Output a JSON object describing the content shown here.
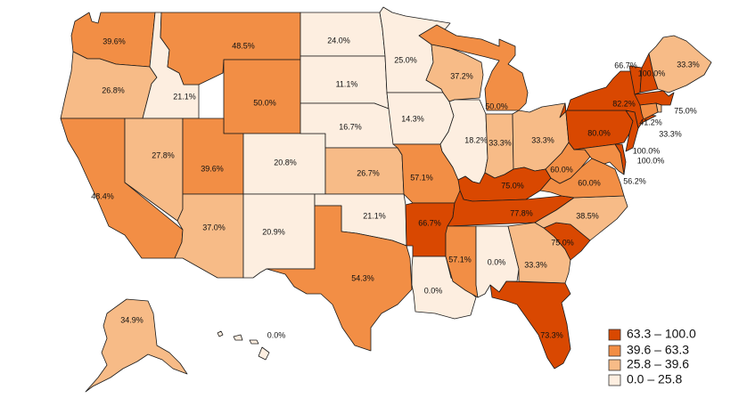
{
  "colors": {
    "c1": "#d94801",
    "c2": "#f28e45",
    "c3": "#f7bb87",
    "c4": "#fdeee0"
  },
  "legend": [
    {
      "id": "leg1",
      "label": "63.3 – 100.0",
      "color": "#d94801"
    },
    {
      "id": "leg2",
      "label": "39.6 – 63.3",
      "color": "#f28e45"
    },
    {
      "id": "leg3",
      "label": "25.8 – 39.6",
      "color": "#f7bb87"
    },
    {
      "id": "leg4",
      "label": "0.0 – 25.8",
      "color": "#fdeee0"
    }
  ],
  "states": [
    {
      "id": "WA",
      "value": "39.6%"
    },
    {
      "id": "OR",
      "value": "26.8%"
    },
    {
      "id": "CA",
      "value": "48.4%"
    },
    {
      "id": "ID",
      "value": "21.1%"
    },
    {
      "id": "NV",
      "value": "27.8%"
    },
    {
      "id": "MT",
      "value": "48.5%"
    },
    {
      "id": "WY",
      "value": "50.0%"
    },
    {
      "id": "UT",
      "value": "39.6%"
    },
    {
      "id": "AZ",
      "value": "37.0%"
    },
    {
      "id": "CO",
      "value": "20.8%"
    },
    {
      "id": "NM",
      "value": "20.9%"
    },
    {
      "id": "ND",
      "value": "24.0%"
    },
    {
      "id": "SD",
      "value": "11.1%"
    },
    {
      "id": "NE",
      "value": "16.7%"
    },
    {
      "id": "KS",
      "value": "26.7%"
    },
    {
      "id": "OK",
      "value": "21.1%"
    },
    {
      "id": "TX",
      "value": "54.3%"
    },
    {
      "id": "MN",
      "value": "25.0%"
    },
    {
      "id": "IA",
      "value": "14.3%"
    },
    {
      "id": "MO",
      "value": "57.1%"
    },
    {
      "id": "AR",
      "value": "66.7%"
    },
    {
      "id": "LA",
      "value": "0.0%"
    },
    {
      "id": "WI",
      "value": "37.2%"
    },
    {
      "id": "IL",
      "value": "18.2%"
    },
    {
      "id": "MI",
      "value": "50.0%"
    },
    {
      "id": "IN",
      "value": "33.3%"
    },
    {
      "id": "OH",
      "value": "33.3%"
    },
    {
      "id": "KY",
      "value": "75.0%"
    },
    {
      "id": "TN",
      "value": "77.8%"
    },
    {
      "id": "MS",
      "value": "57.1%"
    },
    {
      "id": "AL",
      "value": "0.0%"
    },
    {
      "id": "GA",
      "value": "33.3%"
    },
    {
      "id": "FL",
      "value": "73.3%"
    },
    {
      "id": "SC",
      "value": "75.0%"
    },
    {
      "id": "NC",
      "value": "38.5%"
    },
    {
      "id": "VA",
      "value": "60.0%"
    },
    {
      "id": "WV",
      "value": "60.0%"
    },
    {
      "id": "PA",
      "value": "80.0%"
    },
    {
      "id": "NY",
      "value": "82.2%"
    },
    {
      "id": "VT",
      "value": "66.7%"
    },
    {
      "id": "NH",
      "value": "100.0%"
    },
    {
      "id": "ME",
      "value": "33.3%"
    },
    {
      "id": "MA",
      "value": "75.0%"
    },
    {
      "id": "RI",
      "value": "33.3%"
    },
    {
      "id": "CT",
      "value": "41.2%"
    },
    {
      "id": "NJ",
      "value": "100.0%"
    },
    {
      "id": "DE",
      "value": "100.0%"
    },
    {
      "id": "MD",
      "value": "56.2%"
    },
    {
      "id": "AK",
      "value": "34.9%"
    },
    {
      "id": "HI",
      "value": "0.0%"
    }
  ]
}
